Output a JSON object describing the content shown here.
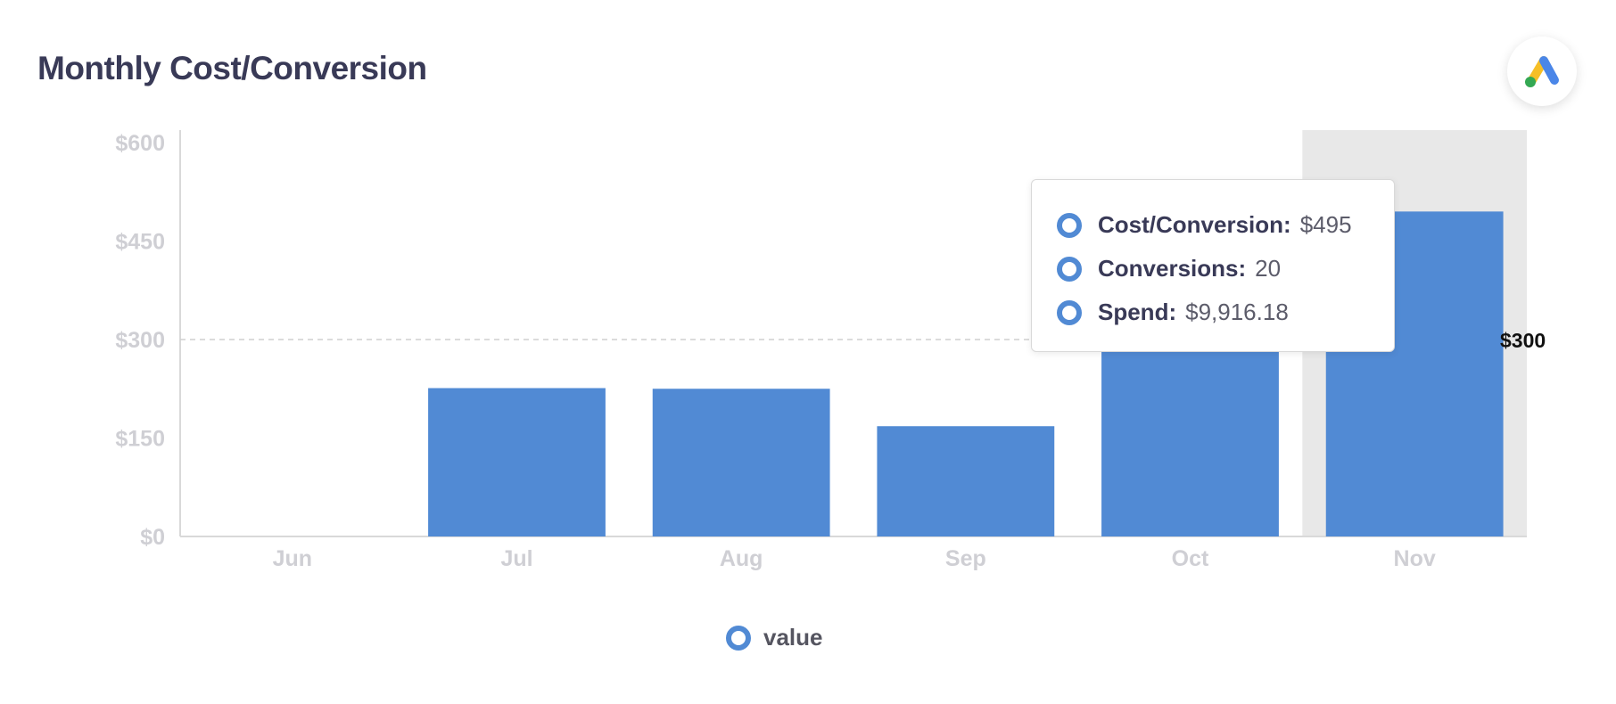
{
  "header": {
    "title": "Monthly Cost/Conversion",
    "logo_icon": "google-ads-logo-icon"
  },
  "tooltip": {
    "rows": [
      {
        "label": "Cost/Conversion:",
        "value": "$495"
      },
      {
        "label": "Conversions:",
        "value": "20"
      },
      {
        "label": "Spend:",
        "value": "$9,916.18"
      }
    ]
  },
  "legend": {
    "label": "value"
  },
  "colors": {
    "bar": "#518ad4",
    "highlight": "#e8e8e8",
    "axis_text": "#cfcfd4"
  },
  "chart_data": {
    "type": "bar",
    "title": "Monthly Cost/Conversion",
    "xlabel": "",
    "ylabel": "",
    "categories": [
      "Jun",
      "Jul",
      "Aug",
      "Sep",
      "Oct",
      "Nov"
    ],
    "series": [
      {
        "name": "value",
        "values": [
          0,
          226,
          225,
          168,
          400,
          495
        ]
      }
    ],
    "ylim": [
      0,
      600
    ],
    "yticks": [
      0,
      150,
      300,
      450,
      600
    ],
    "ytick_labels": [
      "$0",
      "$150",
      "$300",
      "$450",
      "$600"
    ],
    "reference_line": {
      "value": 300,
      "label": "$300"
    },
    "highlighted_category": "Nov",
    "grid": false,
    "legend_position": "bottom"
  }
}
